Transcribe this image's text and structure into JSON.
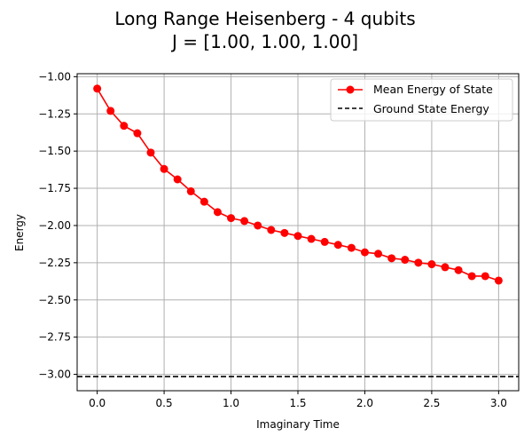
{
  "chart_data": {
    "type": "line",
    "title": "Long Range Heisenberg - 4 qubits",
    "subtitle": "J = [1.00, 1.00, 1.00]",
    "xlabel": "Imaginary Time",
    "ylabel": "Energy",
    "xlim": [
      -0.15,
      3.15
    ],
    "ylim": [
      -3.11,
      -0.98
    ],
    "xticks": [
      0.0,
      0.5,
      1.0,
      1.5,
      2.0,
      2.5,
      3.0
    ],
    "xtick_labels": [
      "0.0",
      "0.5",
      "1.0",
      "1.5",
      "2.0",
      "2.5",
      "3.0"
    ],
    "yticks": [
      -1.0,
      -1.25,
      -1.5,
      -1.75,
      -2.0,
      -2.25,
      -2.5,
      -2.75,
      -3.0
    ],
    "ytick_labels": [
      "−1.00",
      "−1.25",
      "−1.50",
      "−1.75",
      "−2.00",
      "−2.25",
      "−2.50",
      "−2.75",
      "−3.00"
    ],
    "grid": true,
    "legend_position": "top-right",
    "series": [
      {
        "name": "Mean Energy of State",
        "color": "#ff0000",
        "style": "line-with-circle-markers",
        "x": [
          0.0,
          0.1,
          0.2,
          0.3,
          0.4,
          0.5,
          0.6,
          0.7,
          0.8,
          0.9,
          1.0,
          1.1,
          1.2,
          1.3,
          1.4,
          1.5,
          1.6,
          1.7,
          1.8,
          1.9,
          2.0,
          2.1,
          2.2,
          2.3,
          2.4,
          2.5,
          2.6,
          2.7,
          2.8,
          2.9,
          3.0
        ],
        "y": [
          -1.08,
          -1.23,
          -1.33,
          -1.38,
          -1.51,
          -1.62,
          -1.69,
          -1.77,
          -1.84,
          -1.91,
          -1.95,
          -1.97,
          -2.0,
          -2.03,
          -2.05,
          -2.07,
          -2.09,
          -2.11,
          -2.13,
          -2.15,
          -2.18,
          -2.19,
          -2.22,
          -2.23,
          -2.25,
          -2.26,
          -2.28,
          -2.3,
          -2.34,
          -2.34,
          -2.37
        ]
      },
      {
        "name": "Ground State Energy",
        "color": "#000000",
        "style": "dashed-horizontal-line",
        "y": -3.015
      }
    ]
  }
}
